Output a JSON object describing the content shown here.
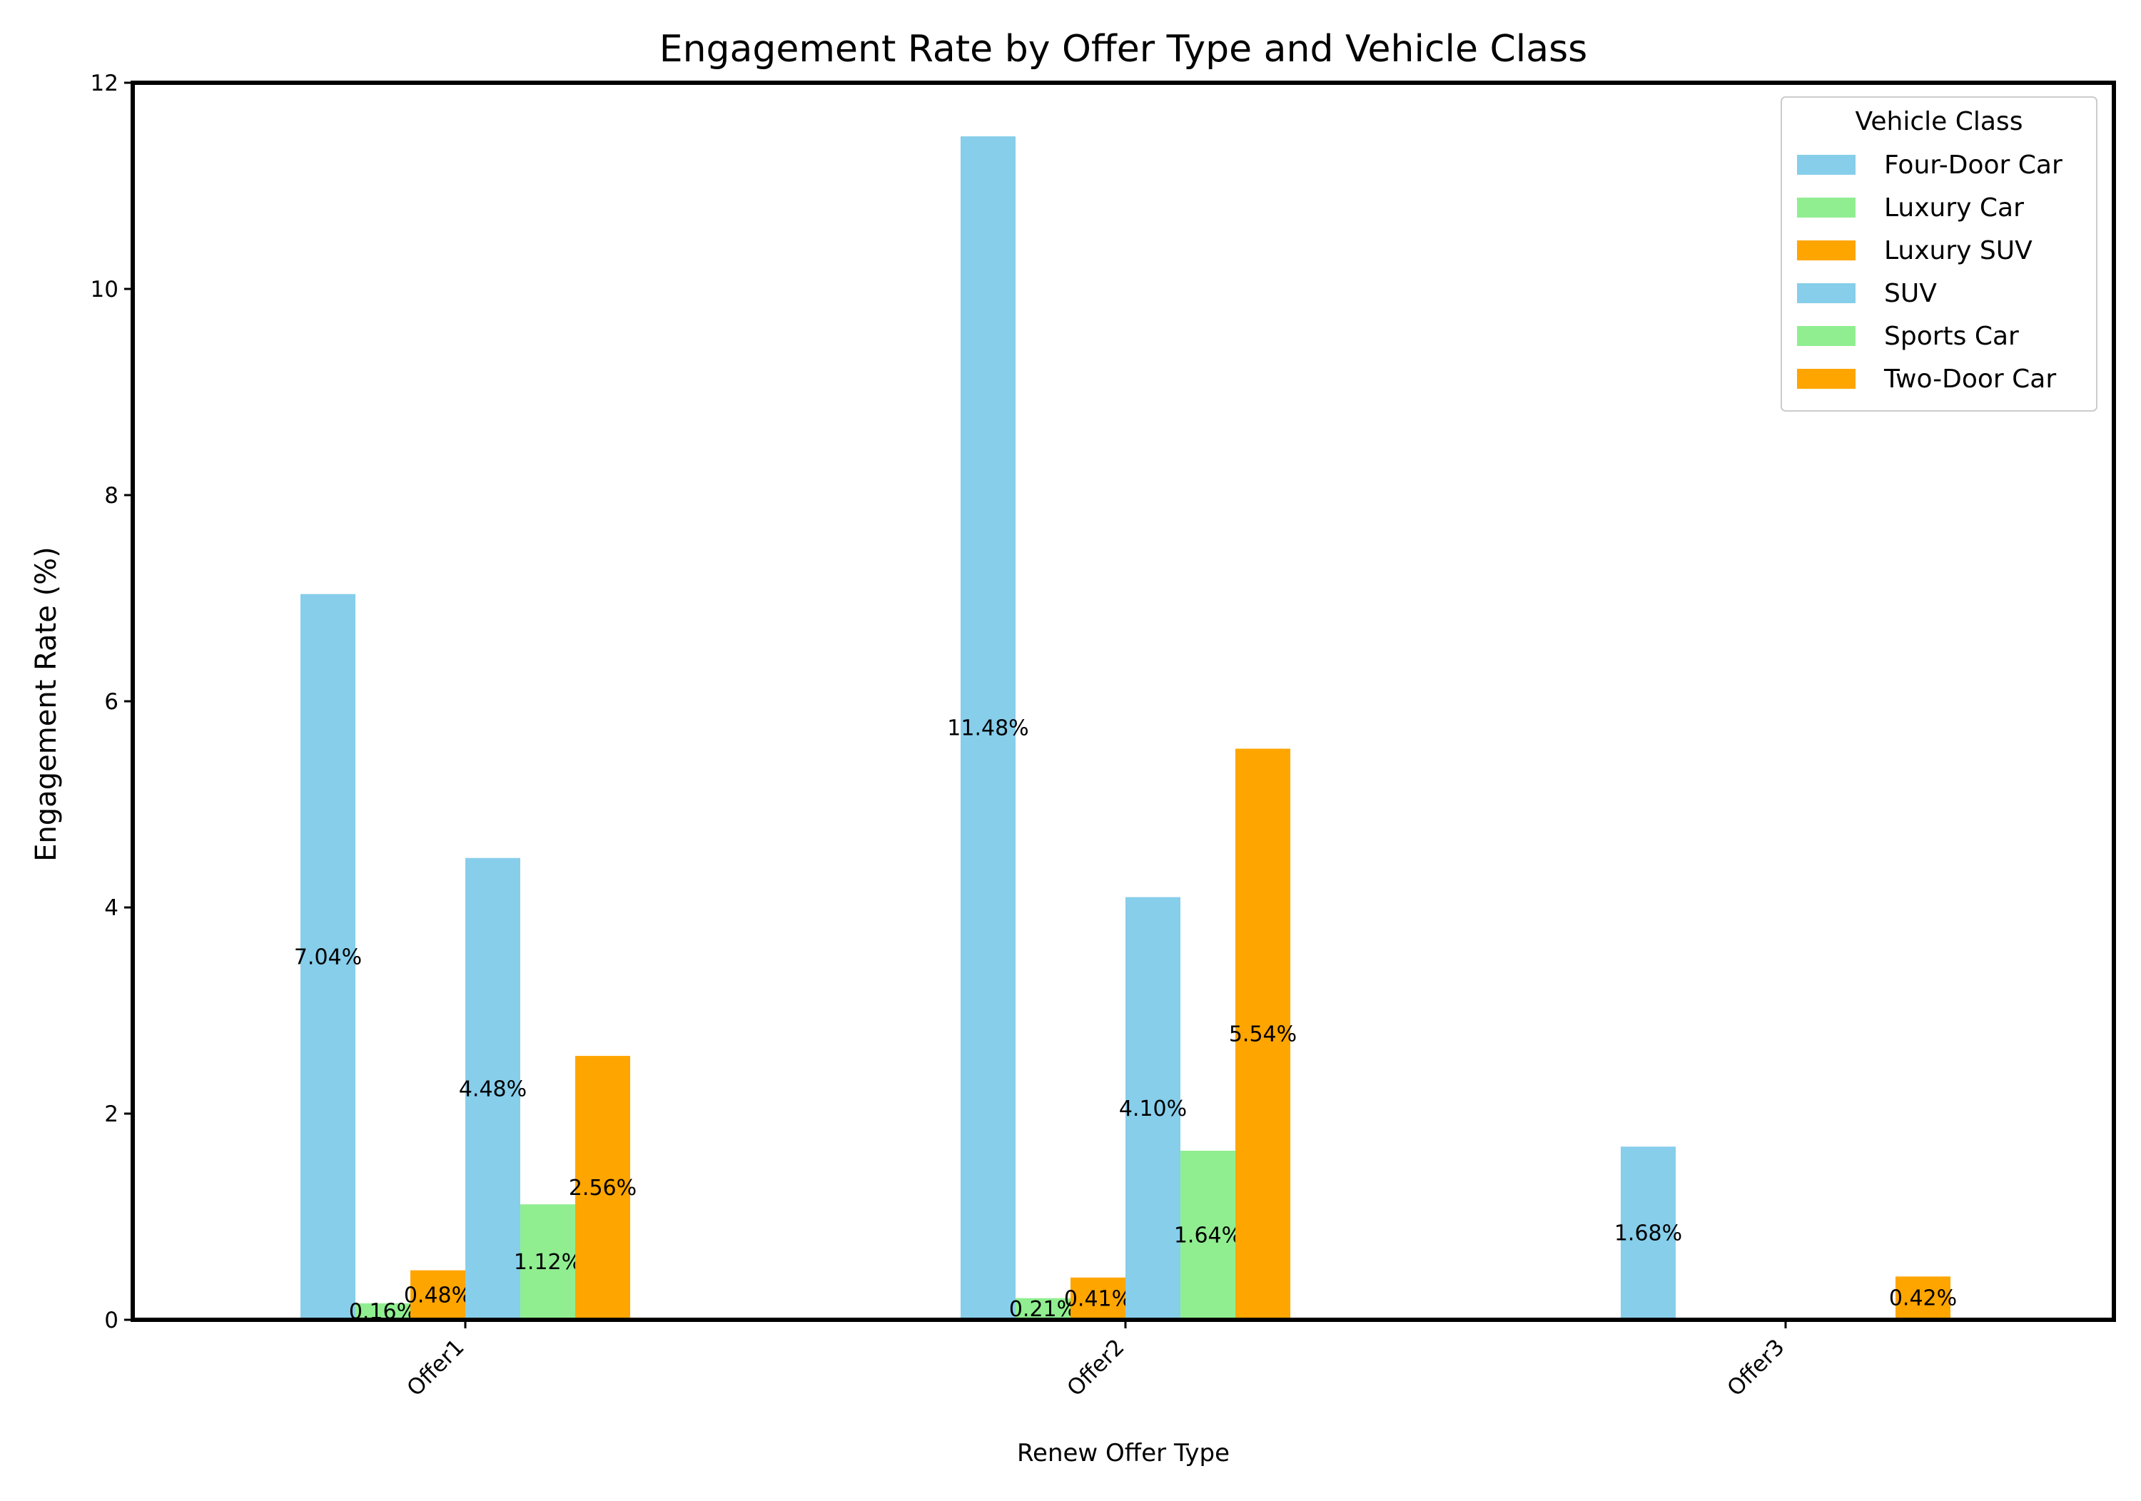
{
  "chart_data": {
    "type": "bar",
    "title": "Engagement Rate by Offer Type and Vehicle Class",
    "xlabel": "Renew Offer Type",
    "ylabel": "Engagement Rate (%)",
    "categories": [
      "Offer1",
      "Offer2",
      "Offer3"
    ],
    "ylim": [
      0,
      12
    ],
    "yticks": [
      0,
      2,
      4,
      6,
      8,
      10,
      12
    ],
    "grid": false,
    "legend": {
      "title": "Vehicle Class",
      "position": "top-right"
    },
    "series": [
      {
        "name": "Four-Door Car",
        "color": "#87CEEB",
        "values": [
          7.04,
          11.48,
          1.68
        ],
        "labels": [
          "7.04%",
          "11.48%",
          "1.68%"
        ]
      },
      {
        "name": "Luxury Car",
        "color": "#90EE90",
        "values": [
          0.16,
          0.21,
          0
        ],
        "labels": [
          "0.16%",
          "0.21%",
          ""
        ]
      },
      {
        "name": "Luxury SUV",
        "color": "#FFA500",
        "values": [
          0.48,
          0.41,
          0
        ],
        "labels": [
          "0.48%",
          "0.41%",
          ""
        ]
      },
      {
        "name": "SUV",
        "color": "#87CEEB",
        "values": [
          4.48,
          4.1,
          0
        ],
        "labels": [
          "4.48%",
          "4.10%",
          ""
        ]
      },
      {
        "name": "Sports Car",
        "color": "#90EE90",
        "values": [
          1.12,
          1.64,
          0
        ],
        "labels": [
          "1.12%",
          "1.64%",
          ""
        ]
      },
      {
        "name": "Two-Door Car",
        "color": "#FFA500",
        "values": [
          2.56,
          5.54,
          0.42
        ],
        "labels": [
          "2.56%",
          "5.54%",
          "0.42%"
        ]
      }
    ]
  }
}
